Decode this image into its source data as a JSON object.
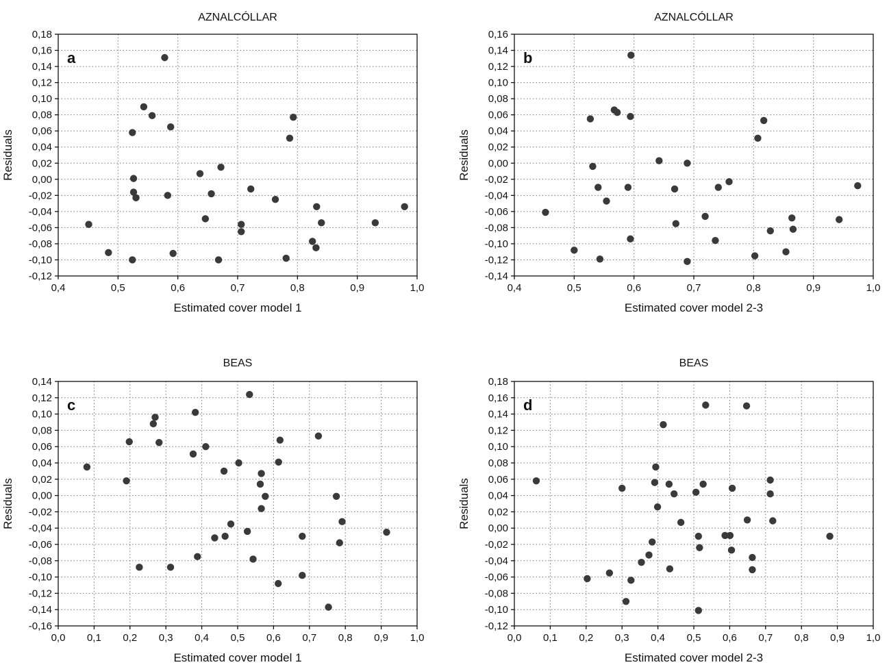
{
  "colors": {
    "marker": "#3a3a3a",
    "axis": "#111111",
    "grid": "#777777"
  },
  "chart_data": [
    {
      "panel": "a",
      "type": "scatter",
      "title": "AZNALCÓLLAR",
      "xlabel": "Estimated cover model 1",
      "ylabel": "Residuals",
      "xlim": [
        0.4,
        1.0
      ],
      "ylim": [
        -0.12,
        0.18
      ],
      "xticks": [
        0.4,
        0.5,
        0.6,
        0.7,
        0.8,
        0.9,
        1.0
      ],
      "yticks": [
        -0.12,
        -0.1,
        -0.08,
        -0.06,
        -0.04,
        -0.02,
        0.0,
        0.02,
        0.04,
        0.06,
        0.08,
        0.1,
        0.12,
        0.14,
        0.16,
        0.18
      ],
      "xtick_labels": [
        "0,4",
        "0,5",
        "0,6",
        "0,7",
        "0,8",
        "0,9",
        "1,0"
      ],
      "ytick_labels": [
        "-0,12",
        "-0,10",
        "-0,08",
        "-0,06",
        "-0,04",
        "-0,02",
        "0,00",
        "0,02",
        "0,04",
        "0,06",
        "0,08",
        "0,10",
        "0,12",
        "0,14",
        "0,16",
        "0,18"
      ],
      "grid": true,
      "points": [
        [
          0.578,
          0.151
        ],
        [
          0.543,
          0.09
        ],
        [
          0.557,
          0.079
        ],
        [
          0.588,
          0.065
        ],
        [
          0.524,
          0.058
        ],
        [
          0.793,
          0.077
        ],
        [
          0.787,
          0.051
        ],
        [
          0.672,
          0.015
        ],
        [
          0.637,
          0.007
        ],
        [
          0.526,
          0.001
        ],
        [
          0.526,
          -0.016
        ],
        [
          0.53,
          -0.023
        ],
        [
          0.583,
          -0.02
        ],
        [
          0.656,
          -0.018
        ],
        [
          0.722,
          -0.012
        ],
        [
          0.763,
          -0.025
        ],
        [
          0.832,
          -0.034
        ],
        [
          0.979,
          -0.034
        ],
        [
          0.646,
          -0.049
        ],
        [
          0.451,
          -0.056
        ],
        [
          0.706,
          -0.056
        ],
        [
          0.706,
          -0.065
        ],
        [
          0.84,
          -0.054
        ],
        [
          0.93,
          -0.054
        ],
        [
          0.825,
          -0.077
        ],
        [
          0.831,
          -0.085
        ],
        [
          0.484,
          -0.091
        ],
        [
          0.592,
          -0.092
        ],
        [
          0.524,
          -0.1
        ],
        [
          0.668,
          -0.1
        ],
        [
          0.781,
          -0.098
        ]
      ]
    },
    {
      "panel": "b",
      "type": "scatter",
      "title": "AZNALCÓLLAR",
      "xlabel": "Estimated cover model 2-3",
      "ylabel": "Residuals",
      "xlim": [
        0.4,
        1.0
      ],
      "ylim": [
        -0.14,
        0.16
      ],
      "xticks": [
        0.4,
        0.5,
        0.6,
        0.7,
        0.8,
        0.9,
        1.0
      ],
      "yticks": [
        -0.14,
        -0.12,
        -0.1,
        -0.08,
        -0.06,
        -0.04,
        -0.02,
        0.0,
        0.02,
        0.04,
        0.06,
        0.08,
        0.1,
        0.12,
        0.14,
        0.16
      ],
      "xtick_labels": [
        "0,4",
        "0,5",
        "0,6",
        "0,7",
        "0,8",
        "0,9",
        "1,0"
      ],
      "ytick_labels": [
        "-0,14",
        "-0,12",
        "-0,10",
        "-0,08",
        "-0,06",
        "-0,04",
        "-0,02",
        "0,00",
        "0,02",
        "0,04",
        "0,06",
        "0,08",
        "0,10",
        "0,12",
        "0,14",
        "0,16"
      ],
      "grid": true,
      "points": [
        [
          0.595,
          0.134
        ],
        [
          0.567,
          0.066
        ],
        [
          0.572,
          0.063
        ],
        [
          0.594,
          0.058
        ],
        [
          0.527,
          0.055
        ],
        [
          0.817,
          0.053
        ],
        [
          0.807,
          0.031
        ],
        [
          0.642,
          0.003
        ],
        [
          0.689,
          0.0
        ],
        [
          0.531,
          -0.004
        ],
        [
          0.54,
          -0.03
        ],
        [
          0.59,
          -0.03
        ],
        [
          0.668,
          -0.032
        ],
        [
          0.741,
          -0.03
        ],
        [
          0.759,
          -0.023
        ],
        [
          0.974,
          -0.028
        ],
        [
          0.554,
          -0.047
        ],
        [
          0.452,
          -0.061
        ],
        [
          0.719,
          -0.066
        ],
        [
          0.864,
          -0.068
        ],
        [
          0.943,
          -0.07
        ],
        [
          0.67,
          -0.075
        ],
        [
          0.866,
          -0.082
        ],
        [
          0.828,
          -0.084
        ],
        [
          0.594,
          -0.094
        ],
        [
          0.736,
          -0.096
        ],
        [
          0.5,
          -0.108
        ],
        [
          0.854,
          -0.11
        ],
        [
          0.802,
          -0.115
        ],
        [
          0.543,
          -0.119
        ],
        [
          0.689,
          -0.122
        ]
      ]
    },
    {
      "panel": "c",
      "type": "scatter",
      "title": "BEAS",
      "xlabel": "Estimated cover model 1",
      "ylabel": "Residuals",
      "xlim": [
        0.0,
        1.0
      ],
      "ylim": [
        -0.16,
        0.14
      ],
      "xticks": [
        0.0,
        0.1,
        0.2,
        0.3,
        0.4,
        0.5,
        0.6,
        0.7,
        0.8,
        0.9,
        1.0
      ],
      "yticks": [
        -0.16,
        -0.14,
        -0.12,
        -0.1,
        -0.08,
        -0.06,
        -0.04,
        -0.02,
        0.0,
        0.02,
        0.04,
        0.06,
        0.08,
        0.1,
        0.12,
        0.14
      ],
      "xtick_labels": [
        "0,0",
        "0,1",
        "0,2",
        "0,3",
        "0,4",
        "0,5",
        "0,6",
        "0,7",
        "0,8",
        "0,9",
        "1,0"
      ],
      "ytick_labels": [
        "-0,16",
        "-0,14",
        "-0,12",
        "-0,10",
        "-0,08",
        "-0,06",
        "-0,04",
        "-0,02",
        "0,00",
        "0,02",
        "0,04",
        "0,06",
        "0,08",
        "0,10",
        "0,12",
        "0,14"
      ],
      "grid": true,
      "points": [
        [
          0.533,
          0.124
        ],
        [
          0.382,
          0.102
        ],
        [
          0.27,
          0.096
        ],
        [
          0.265,
          0.088
        ],
        [
          0.725,
          0.073
        ],
        [
          0.198,
          0.066
        ],
        [
          0.281,
          0.065
        ],
        [
          0.618,
          0.068
        ],
        [
          0.411,
          0.06
        ],
        [
          0.376,
          0.051
        ],
        [
          0.614,
          0.041
        ],
        [
          0.503,
          0.04
        ],
        [
          0.462,
          0.03
        ],
        [
          0.566,
          0.027
        ],
        [
          0.08,
          0.035
        ],
        [
          0.19,
          0.018
        ],
        [
          0.563,
          0.014
        ],
        [
          0.577,
          -0.001
        ],
        [
          0.775,
          -0.001
        ],
        [
          0.566,
          -0.016
        ],
        [
          0.791,
          -0.032
        ],
        [
          0.481,
          -0.035
        ],
        [
          0.527,
          -0.044
        ],
        [
          0.915,
          -0.045
        ],
        [
          0.436,
          -0.052
        ],
        [
          0.465,
          -0.05
        ],
        [
          0.68,
          -0.05
        ],
        [
          0.784,
          -0.058
        ],
        [
          0.388,
          -0.075
        ],
        [
          0.543,
          -0.078
        ],
        [
          0.226,
          -0.088
        ],
        [
          0.313,
          -0.088
        ],
        [
          0.68,
          -0.098
        ],
        [
          0.613,
          -0.108
        ],
        [
          0.753,
          -0.137
        ]
      ]
    },
    {
      "panel": "d",
      "type": "scatter",
      "title": "BEAS",
      "xlabel": "Estimated cover model 2-3",
      "ylabel": "Residuals",
      "xlim": [
        0.0,
        1.0
      ],
      "ylim": [
        -0.12,
        0.18
      ],
      "xticks": [
        0.0,
        0.1,
        0.2,
        0.3,
        0.4,
        0.5,
        0.6,
        0.7,
        0.8,
        0.9,
        1.0
      ],
      "yticks": [
        -0.12,
        -0.1,
        -0.08,
        -0.06,
        -0.04,
        -0.02,
        0.0,
        0.02,
        0.04,
        0.06,
        0.08,
        0.1,
        0.12,
        0.14,
        0.16,
        0.18
      ],
      "xtick_labels": [
        "0,0",
        "0,1",
        "0,2",
        "0,3",
        "0,4",
        "0,5",
        "0,6",
        "0,7",
        "0,8",
        "0,9",
        "1,0"
      ],
      "ytick_labels": [
        "-0,12",
        "-0,10",
        "-0,08",
        "-0,06",
        "-0,04",
        "-0,02",
        "0,00",
        "0,02",
        "0,04",
        "0,06",
        "0,08",
        "0,10",
        "0,12",
        "0,14",
        "0,16",
        "0,18"
      ],
      "grid": true,
      "points": [
        [
          0.533,
          0.151
        ],
        [
          0.647,
          0.15
        ],
        [
          0.415,
          0.127
        ],
        [
          0.394,
          0.075
        ],
        [
          0.061,
          0.058
        ],
        [
          0.713,
          0.059
        ],
        [
          0.391,
          0.056
        ],
        [
          0.431,
          0.054
        ],
        [
          0.526,
          0.054
        ],
        [
          0.3,
          0.049
        ],
        [
          0.607,
          0.049
        ],
        [
          0.445,
          0.042
        ],
        [
          0.506,
          0.044
        ],
        [
          0.713,
          0.042
        ],
        [
          0.399,
          0.026
        ],
        [
          0.649,
          0.01
        ],
        [
          0.72,
          0.009
        ],
        [
          0.464,
          0.007
        ],
        [
          0.513,
          -0.01
        ],
        [
          0.587,
          -0.009
        ],
        [
          0.601,
          -0.009
        ],
        [
          0.879,
          -0.01
        ],
        [
          0.384,
          -0.017
        ],
        [
          0.516,
          -0.024
        ],
        [
          0.605,
          -0.027
        ],
        [
          0.375,
          -0.033
        ],
        [
          0.663,
          -0.036
        ],
        [
          0.354,
          -0.042
        ],
        [
          0.433,
          -0.05
        ],
        [
          0.663,
          -0.051
        ],
        [
          0.265,
          -0.055
        ],
        [
          0.203,
          -0.062
        ],
        [
          0.325,
          -0.064
        ],
        [
          0.311,
          -0.09
        ],
        [
          0.513,
          -0.101
        ]
      ]
    }
  ]
}
